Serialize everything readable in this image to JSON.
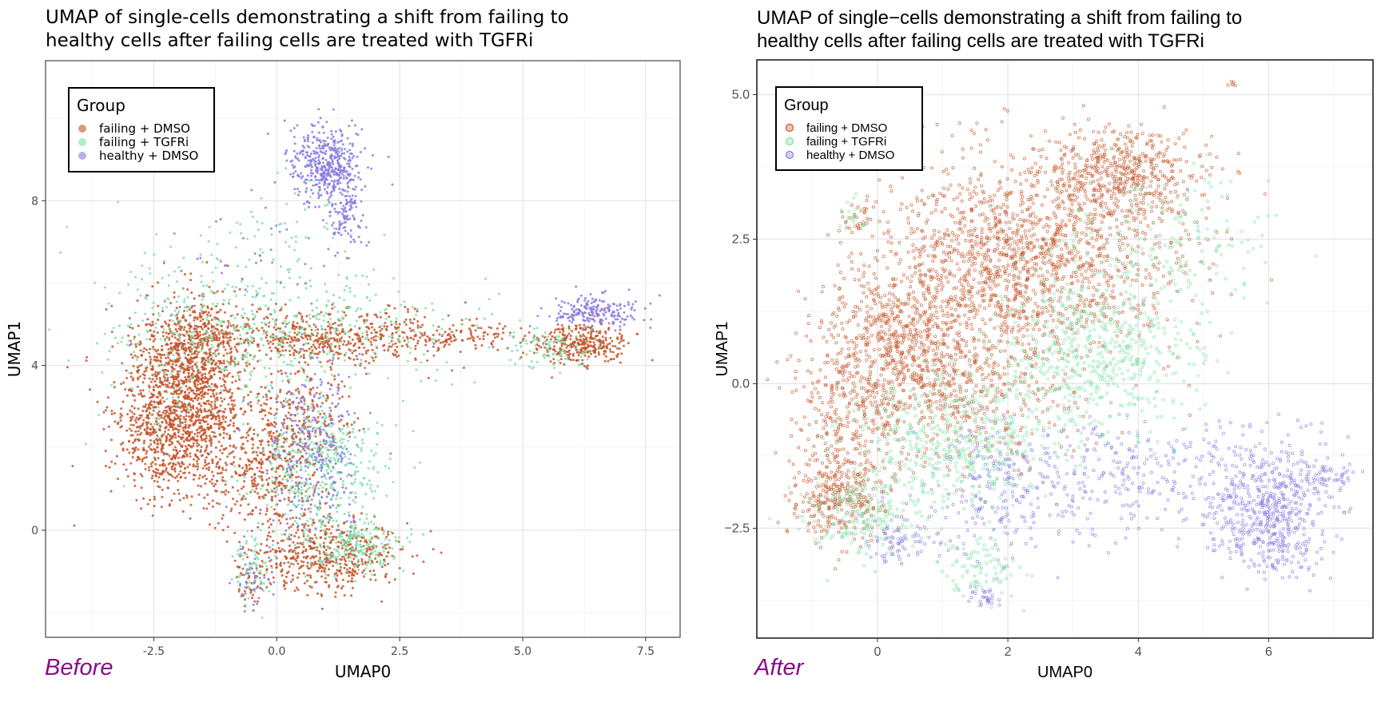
{
  "panels": [
    {
      "id": "before",
      "title_line1": "UMAP of single-cells demonstrating a shift from failing to",
      "title_line2": "healthy cells after failing cells are treated with TGFRi",
      "tag": "Before"
    },
    {
      "id": "after",
      "title_line1": "UMAP of single−cells demonstrating a shift from failing to",
      "title_line2": "healthy cells after failing cells are treated with TGFRi",
      "tag": "After"
    }
  ],
  "colors": {
    "failing_dmso": "#c4552a",
    "failing_tgfri": "#7ee0a8",
    "healthy_dmso": "#8a7be0"
  },
  "chart_data": [
    {
      "type": "scatter",
      "title": "UMAP of single-cells demonstrating a shift from failing to healthy cells after failing cells are treated with TGFRi",
      "xlabel": "UMAP0",
      "ylabel": "UMAP1",
      "xlim": [
        -4.7,
        8.2
      ],
      "ylim": [
        -2.6,
        11.4
      ],
      "xticks": [
        -2.5,
        0.0,
        2.5,
        5.0,
        7.5
      ],
      "xtick_labels": [
        "-2.5",
        "0.0",
        "2.5",
        "5.0",
        "7.5"
      ],
      "yticks": [
        0,
        4,
        8
      ],
      "ytick_labels": [
        "0",
        "4",
        "8"
      ],
      "grid": true,
      "legend": {
        "title": "Group",
        "placement": "top-left",
        "entries": [
          "failing + DMSO",
          "failing + TGFRi",
          "healthy + DMSO"
        ]
      },
      "marker": "filled",
      "series": [
        {
          "name": "failing + DMSO",
          "clusters": [
            {
              "cx": -2.0,
              "cy": 2.8,
              "sx": 0.65,
              "sy": 1.0,
              "n": 1400
            },
            {
              "cx": -1.6,
              "cy": 4.5,
              "sx": 0.5,
              "sy": 0.6,
              "n": 500
            },
            {
              "cx": 1.0,
              "cy": 4.7,
              "sx": 1.2,
              "sy": 0.35,
              "n": 550
            },
            {
              "cx": 3.8,
              "cy": 4.7,
              "sx": 0.8,
              "sy": 0.18,
              "n": 110
            },
            {
              "cx": 6.2,
              "cy": 4.5,
              "sx": 0.45,
              "sy": 0.25,
              "n": 320
            },
            {
              "cx": 1.0,
              "cy": -0.6,
              "sx": 0.75,
              "sy": 0.45,
              "n": 500
            },
            {
              "cx": -0.2,
              "cy": 1.4,
              "sx": 0.6,
              "sy": 0.8,
              "n": 400
            },
            {
              "cx": 0.5,
              "cy": 2.8,
              "sx": 0.5,
              "sy": 0.6,
              "n": 200
            },
            {
              "cx": -0.55,
              "cy": -1.3,
              "sx": 0.15,
              "sy": 0.4,
              "n": 40
            }
          ]
        },
        {
          "name": "failing + TGFRi",
          "clusters": [
            {
              "cx": -1.3,
              "cy": 4.9,
              "sx": 1.2,
              "sy": 1.1,
              "n": 360
            },
            {
              "cx": 0.9,
              "cy": 1.5,
              "sx": 0.65,
              "sy": 0.8,
              "n": 420
            },
            {
              "cx": 1.6,
              "cy": -0.4,
              "sx": 0.5,
              "sy": 0.3,
              "n": 200
            },
            {
              "cx": 1.2,
              "cy": 4.9,
              "sx": 1.5,
              "sy": 0.6,
              "n": 230
            },
            {
              "cx": 5.6,
              "cy": 4.4,
              "sx": 0.45,
              "sy": 0.25,
              "n": 90
            },
            {
              "cx": -0.5,
              "cy": -1.0,
              "sx": 0.2,
              "sy": 0.5,
              "n": 70
            },
            {
              "cx": 0.6,
              "cy": 7.5,
              "sx": 0.6,
              "sy": 0.9,
              "n": 60
            }
          ]
        },
        {
          "name": "healthy + DMSO",
          "clusters": [
            {
              "cx": 1.0,
              "cy": 8.9,
              "sx": 0.38,
              "sy": 0.45,
              "n": 430
            },
            {
              "cx": 1.4,
              "cy": 7.7,
              "sx": 0.2,
              "sy": 0.45,
              "n": 120
            },
            {
              "cx": 0.7,
              "cy": 2.0,
              "sx": 0.5,
              "sy": 1.1,
              "n": 300
            },
            {
              "cx": 6.5,
              "cy": 5.3,
              "sx": 0.45,
              "sy": 0.2,
              "n": 200
            },
            {
              "cx": -0.5,
              "cy": -1.2,
              "sx": 0.2,
              "sy": 0.4,
              "n": 40
            },
            {
              "cx": -0.3,
              "cy": 6.5,
              "sx": 1.0,
              "sy": 0.8,
              "n": 40
            }
          ]
        }
      ]
    },
    {
      "type": "scatter",
      "title": "UMAP of single−cells demonstrating a shift from failing to healthy cells after failing cells are treated with TGFRi",
      "xlabel": "UMAP0",
      "ylabel": "UMAP1",
      "xlim": [
        -1.85,
        7.6
      ],
      "ylim": [
        -4.4,
        5.6
      ],
      "xticks": [
        0,
        2,
        4,
        6
      ],
      "xtick_labels": [
        "0",
        "2",
        "4",
        "6"
      ],
      "yticks": [
        -2.5,
        0.0,
        2.5,
        5.0
      ],
      "ytick_labels": [
        "−2.5",
        "0.0",
        "2.5",
        "5.0"
      ],
      "grid": true,
      "legend": {
        "title": "Group",
        "placement": "top-left",
        "entries": [
          "failing + DMSO",
          "failing + TGFRi",
          "healthy + DMSO"
        ]
      },
      "marker": "hollow",
      "series": [
        {
          "name": "failing + DMSO",
          "clusters": [
            {
              "cx": 2.3,
              "cy": 2.2,
              "sx": 1.1,
              "sy": 0.9,
              "n": 1500
            },
            {
              "cx": 3.8,
              "cy": 3.6,
              "sx": 0.6,
              "sy": 0.4,
              "n": 450
            },
            {
              "cx": 0.5,
              "cy": 0.7,
              "sx": 0.6,
              "sy": 0.7,
              "n": 650
            },
            {
              "cx": -0.4,
              "cy": -0.5,
              "sx": 0.45,
              "sy": 0.9,
              "n": 400
            },
            {
              "cx": -0.6,
              "cy": -2.0,
              "sx": 0.35,
              "sy": 0.35,
              "n": 250
            },
            {
              "cx": 1.5,
              "cy": -0.2,
              "sx": 0.7,
              "sy": 0.6,
              "n": 300
            },
            {
              "cx": -0.3,
              "cy": 2.8,
              "sx": 0.12,
              "sy": 0.2,
              "n": 30
            },
            {
              "cx": 5.45,
              "cy": 5.2,
              "sx": 0.03,
              "sy": 0.02,
              "n": 6
            }
          ]
        },
        {
          "name": "failing + TGFRi",
          "clusters": [
            {
              "cx": 3.4,
              "cy": 0.6,
              "sx": 0.75,
              "sy": 0.8,
              "n": 600
            },
            {
              "cx": 1.3,
              "cy": -1.0,
              "sx": 0.8,
              "sy": 0.6,
              "n": 500
            },
            {
              "cx": -0.2,
              "cy": -2.3,
              "sx": 0.45,
              "sy": 0.35,
              "n": 200
            },
            {
              "cx": 1.6,
              "cy": -3.1,
              "sx": 0.3,
              "sy": 0.3,
              "n": 90
            },
            {
              "cx": 4.6,
              "cy": 2.5,
              "sx": 0.8,
              "sy": 0.8,
              "n": 180
            },
            {
              "cx": -0.3,
              "cy": 2.9,
              "sx": 0.1,
              "sy": 0.2,
              "n": 20
            }
          ]
        },
        {
          "name": "healthy + DMSO",
          "clusters": [
            {
              "cx": 6.0,
              "cy": -2.2,
              "sx": 0.45,
              "sy": 0.55,
              "n": 550
            },
            {
              "cx": 4.0,
              "cy": -1.5,
              "sx": 1.2,
              "sy": 0.5,
              "n": 280
            },
            {
              "cx": 1.8,
              "cy": -1.9,
              "sx": 0.7,
              "sy": 0.55,
              "n": 220
            },
            {
              "cx": 0.3,
              "cy": -2.8,
              "sx": 0.25,
              "sy": 0.15,
              "n": 60
            },
            {
              "cx": 1.6,
              "cy": -3.7,
              "sx": 0.15,
              "sy": 0.1,
              "n": 30
            },
            {
              "cx": 6.8,
              "cy": -1.6,
              "sx": 0.25,
              "sy": 0.15,
              "n": 60
            }
          ]
        }
      ]
    }
  ]
}
